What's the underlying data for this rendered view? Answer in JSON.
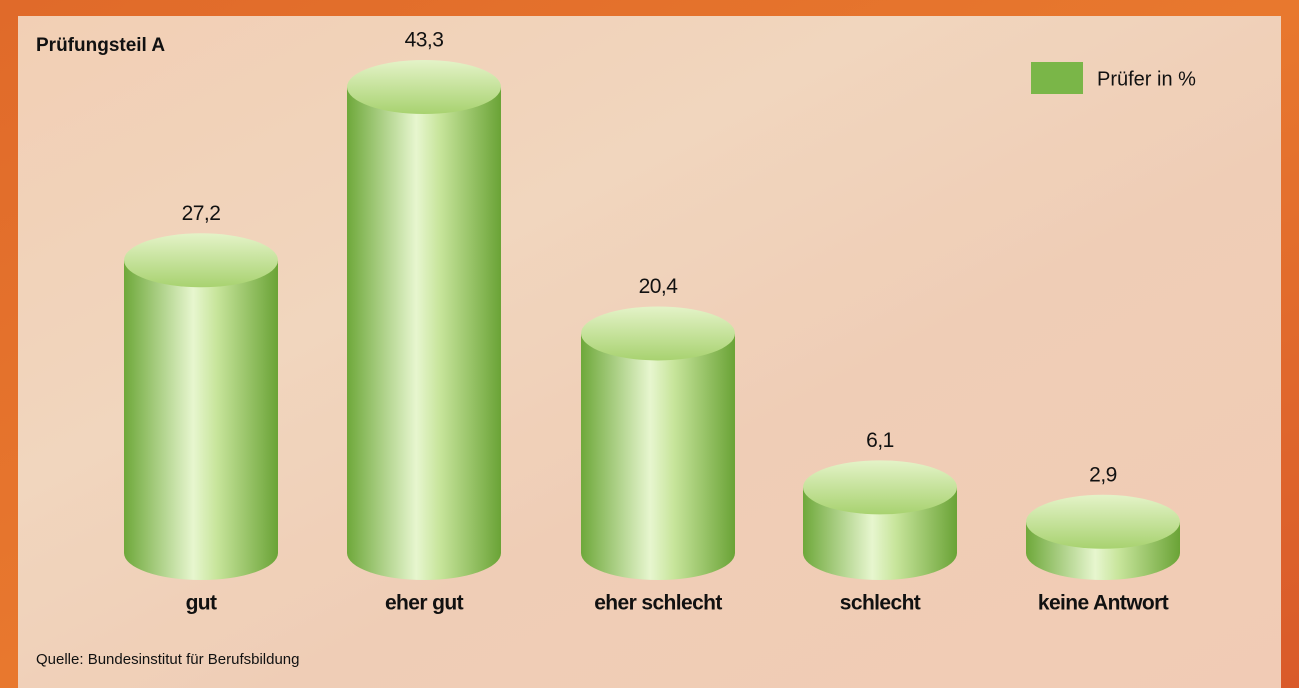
{
  "chart_data": {
    "type": "bar",
    "title": "Prüfungsteil A",
    "categories": [
      "gut",
      "eher gut",
      "eher schlecht",
      "schlecht",
      "keine Antwort"
    ],
    "series": [
      {
        "name": "Prüfer in %",
        "color": "#7ab648",
        "values": [
          27.2,
          43.3,
          20.4,
          6.1,
          2.9
        ],
        "value_labels": [
          "27,2",
          "43,3",
          "20,4",
          "6,1",
          "2,9"
        ]
      }
    ],
    "source": "Quelle: Bundesinstitut für Berufsbildung"
  }
}
